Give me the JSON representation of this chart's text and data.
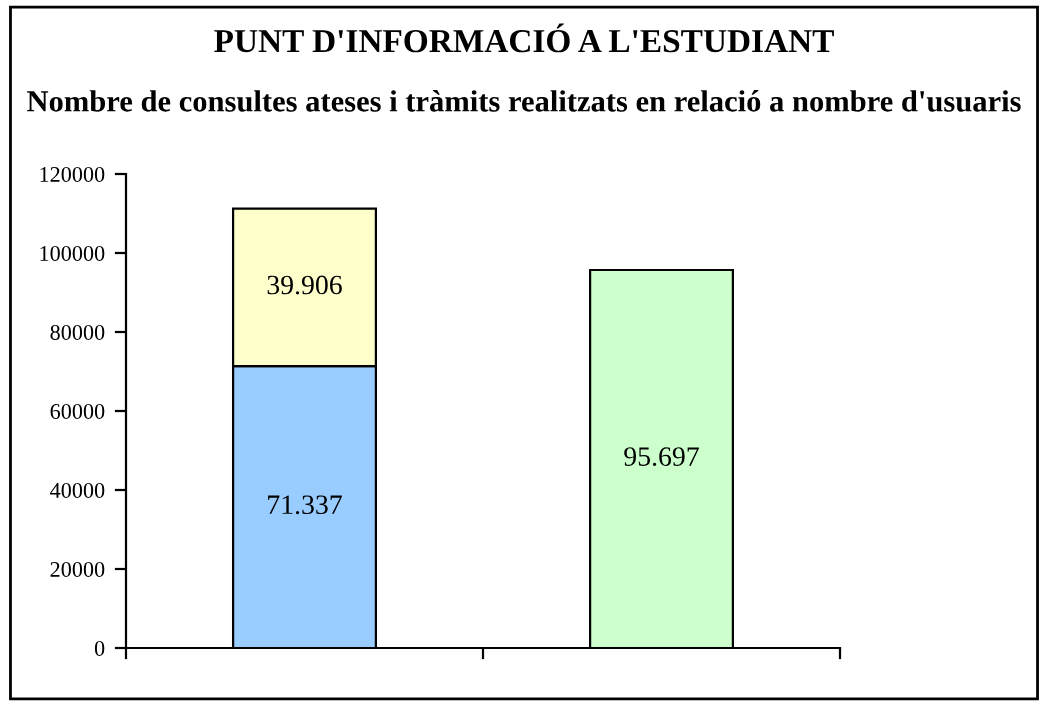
{
  "chart_data": {
    "type": "bar",
    "stacked": true,
    "title": "PUNT D'INFORMACIÓ A L'ESTUDIANT",
    "subtitle": "Nombre de consultes ateses i tràmits realitzats en relació a nombre d'usuaris",
    "categories": [
      null,
      null
    ],
    "series": [
      {
        "colors": [
          "#99ccff",
          "#ccffcc"
        ],
        "values": [
          71337,
          95697
        ],
        "value_labels": [
          "71.337",
          "95.697"
        ]
      },
      {
        "color": "#ffffcc",
        "values": [
          39906,
          null
        ],
        "value_labels": [
          "39.906",
          null
        ]
      }
    ],
    "ylim": [
      0,
      120000
    ],
    "yticks": [
      0,
      20000,
      40000,
      60000,
      80000,
      100000,
      120000
    ],
    "grid": false,
    "legend": false
  }
}
